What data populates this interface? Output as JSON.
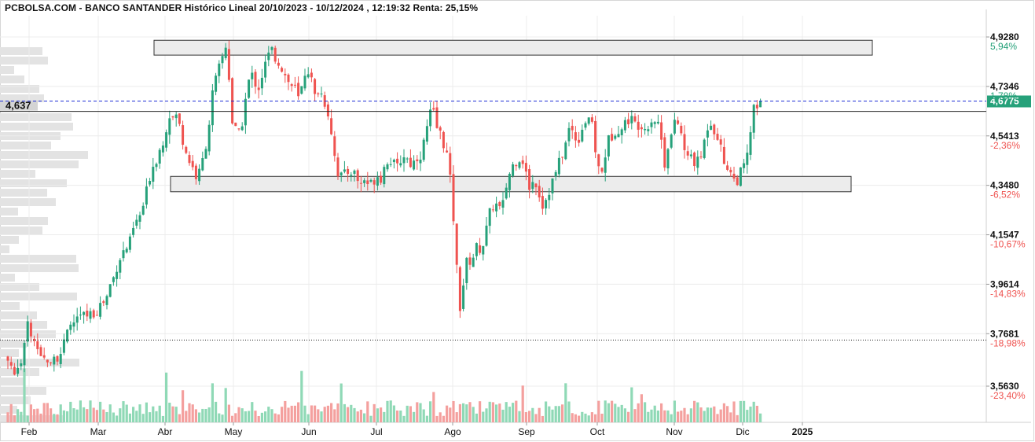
{
  "header": {
    "title": "PCBOLSA.COM - BANCO SANTANDER Histórico Lineal 20/10/2023 - 10/12/2024 , 12:19:32 Renta: 25,15%"
  },
  "colors": {
    "up": "#26a17a",
    "down": "#ef5350",
    "up_volume": "#8fd9b6",
    "down_volume": "#f4a09e",
    "profile": "#e3e3e3",
    "box_fill": "#ececec",
    "pos_pct": "#26a17a",
    "neg_pct": "#ef5350",
    "ref_line": "#1f2fd6",
    "last_price_tag": "#26a17a"
  },
  "chart_data": {
    "type": "candlestick",
    "title": "PCBOLSA.COM - BANCO SANTANDER Histórico Lineal 20/10/2023 - 10/12/2024 , 12:19:32 Renta: 25,15%",
    "y_axis": {
      "range": [
        3.5,
        5.03
      ],
      "ticks": [
        {
          "price": 4.928,
          "label": "4,9280",
          "pct": "5,94%"
        },
        {
          "price": 4.7346,
          "label": "4,7346",
          "pct": "1,78%"
        },
        {
          "price": 4.5413,
          "label": "4,5413",
          "pct": "-2,36%"
        },
        {
          "price": 4.348,
          "label": "4,3480",
          "pct": "-6,52%"
        },
        {
          "price": 4.1547,
          "label": "4,1547",
          "pct": "-10,67%"
        },
        {
          "price": 3.9614,
          "label": "3,9614",
          "pct": "-14,83%"
        },
        {
          "price": 3.7681,
          "label": "3,7681",
          "pct": "-18,98%"
        },
        {
          "price": 3.563,
          "label": "3,5630",
          "pct": "-23,40%"
        }
      ]
    },
    "x_axis": {
      "labels": [
        "Feb",
        "Mar",
        "Abr",
        "May",
        "Jun",
        "Jul",
        "Ago",
        "Sep",
        "Oct",
        "Nov",
        "Dic",
        "2025"
      ]
    },
    "reference_line": {
      "label": "4,637",
      "price": 4.637
    },
    "last_price": {
      "label": "4,6775",
      "price": 4.6775
    },
    "dotted_line_price": 3.768,
    "zones": [
      {
        "name": "upper",
        "low": 4.857,
        "high": 4.915
      },
      {
        "name": "lower",
        "low": 4.323,
        "high": 4.383
      }
    ],
    "path": [
      [
        0,
        3.725
      ],
      [
        5,
        3.7
      ],
      [
        10,
        3.67
      ],
      [
        15,
        3.64
      ],
      [
        20,
        3.62
      ],
      [
        25,
        3.63
      ],
      [
        30,
        3.7
      ],
      [
        35,
        3.8
      ],
      [
        40,
        3.76
      ],
      [
        45,
        3.7
      ],
      [
        50,
        3.67
      ],
      [
        55,
        3.66
      ],
      [
        60,
        3.68
      ],
      [
        65,
        3.67
      ],
      [
        70,
        3.69
      ],
      [
        75,
        3.68
      ],
      [
        80,
        3.71
      ],
      [
        85,
        3.76
      ],
      [
        90,
        3.8
      ],
      [
        95,
        3.82
      ],
      [
        100,
        3.83
      ],
      [
        110,
        3.84
      ],
      [
        120,
        3.85
      ],
      [
        125,
        3.87
      ],
      [
        130,
        3.89
      ],
      [
        135,
        3.9
      ],
      [
        140,
        3.96
      ],
      [
        145,
        3.99
      ],
      [
        150,
        4.05
      ],
      [
        155,
        4.08
      ],
      [
        160,
        4.1
      ],
      [
        165,
        4.12
      ],
      [
        170,
        4.18
      ],
      [
        175,
        4.21
      ],
      [
        180,
        4.24
      ],
      [
        185,
        4.3
      ],
      [
        190,
        4.38
      ],
      [
        195,
        4.43
      ],
      [
        200,
        4.46
      ],
      [
        205,
        4.5
      ],
      [
        210,
        4.55
      ],
      [
        215,
        4.63
      ],
      [
        220,
        4.61
      ],
      [
        225,
        4.62
      ],
      [
        230,
        4.56
      ],
      [
        235,
        4.5
      ],
      [
        240,
        4.45
      ],
      [
        245,
        4.42
      ],
      [
        250,
        4.38
      ],
      [
        255,
        4.4
      ],
      [
        260,
        4.48
      ],
      [
        265,
        4.56
      ],
      [
        270,
        4.7
      ],
      [
        275,
        4.76
      ],
      [
        280,
        4.82
      ],
      [
        285,
        4.87
      ],
      [
        288,
        4.9
      ],
      [
        290,
        4.84
      ],
      [
        295,
        4.6
      ],
      [
        300,
        4.56
      ],
      [
        305,
        4.54
      ],
      [
        310,
        4.63
      ],
      [
        315,
        4.74
      ],
      [
        320,
        4.78
      ],
      [
        325,
        4.75
      ],
      [
        330,
        4.73
      ],
      [
        335,
        4.8
      ],
      [
        340,
        4.84
      ],
      [
        345,
        4.88
      ],
      [
        350,
        4.85
      ],
      [
        355,
        4.83
      ],
      [
        360,
        4.8
      ],
      [
        365,
        4.76
      ],
      [
        370,
        4.74
      ],
      [
        375,
        4.73
      ],
      [
        380,
        4.68
      ],
      [
        385,
        4.74
      ],
      [
        390,
        4.82
      ],
      [
        395,
        4.78
      ],
      [
        400,
        4.69
      ],
      [
        405,
        4.72
      ],
      [
        410,
        4.7
      ],
      [
        415,
        4.66
      ],
      [
        420,
        4.6
      ],
      [
        425,
        4.48
      ],
      [
        430,
        4.4
      ],
      [
        435,
        4.38
      ],
      [
        440,
        4.39
      ],
      [
        445,
        4.41
      ],
      [
        450,
        4.4
      ],
      [
        455,
        4.37
      ],
      [
        460,
        4.35
      ],
      [
        465,
        4.38
      ],
      [
        470,
        4.34
      ],
      [
        475,
        4.37
      ],
      [
        480,
        4.39
      ],
      [
        485,
        4.38
      ],
      [
        490,
        4.43
      ],
      [
        495,
        4.46
      ],
      [
        500,
        4.43
      ],
      [
        505,
        4.41
      ],
      [
        510,
        4.45
      ],
      [
        515,
        4.47
      ],
      [
        520,
        4.44
      ],
      [
        525,
        4.43
      ],
      [
        530,
        4.46
      ],
      [
        535,
        4.47
      ],
      [
        540,
        4.52
      ],
      [
        545,
        4.6
      ],
      [
        550,
        4.65
      ],
      [
        555,
        4.58
      ],
      [
        560,
        4.55
      ],
      [
        565,
        4.51
      ],
      [
        570,
        4.45
      ],
      [
        575,
        4.3
      ],
      [
        578,
        4.18
      ],
      [
        582,
        3.98
      ],
      [
        585,
        3.87
      ],
      [
        588,
        3.92
      ],
      [
        592,
        4.03
      ],
      [
        596,
        4.06
      ],
      [
        600,
        4.05
      ],
      [
        604,
        4.09
      ],
      [
        608,
        4.11
      ],
      [
        612,
        4.1
      ],
      [
        616,
        4.13
      ],
      [
        620,
        4.19
      ],
      [
        625,
        4.26
      ],
      [
        630,
        4.28
      ],
      [
        635,
        4.25
      ],
      [
        640,
        4.27
      ],
      [
        645,
        4.36
      ],
      [
        650,
        4.41
      ],
      [
        655,
        4.44
      ],
      [
        660,
        4.46
      ],
      [
        665,
        4.45
      ],
      [
        670,
        4.38
      ],
      [
        675,
        4.33
      ],
      [
        680,
        4.38
      ],
      [
        685,
        4.33
      ],
      [
        690,
        4.27
      ],
      [
        695,
        4.3
      ],
      [
        700,
        4.34
      ],
      [
        705,
        4.38
      ],
      [
        710,
        4.42
      ],
      [
        715,
        4.47
      ],
      [
        720,
        4.51
      ],
      [
        725,
        4.58
      ],
      [
        730,
        4.55
      ],
      [
        735,
        4.52
      ],
      [
        740,
        4.57
      ],
      [
        745,
        4.6
      ],
      [
        750,
        4.62
      ],
      [
        755,
        4.55
      ],
      [
        760,
        4.43
      ],
      [
        765,
        4.38
      ],
      [
        770,
        4.47
      ],
      [
        775,
        4.53
      ],
      [
        780,
        4.55
      ],
      [
        785,
        4.58
      ],
      [
        790,
        4.56
      ],
      [
        795,
        4.59
      ],
      [
        800,
        4.61
      ],
      [
        805,
        4.6
      ],
      [
        810,
        4.58
      ],
      [
        815,
        4.6
      ],
      [
        820,
        4.57
      ],
      [
        825,
        4.59
      ],
      [
        830,
        4.61
      ],
      [
        835,
        4.6
      ],
      [
        840,
        4.58
      ],
      [
        845,
        4.42
      ],
      [
        850,
        4.51
      ],
      [
        855,
        4.55
      ],
      [
        860,
        4.6
      ],
      [
        865,
        4.58
      ],
      [
        870,
        4.49
      ],
      [
        875,
        4.45
      ],
      [
        880,
        4.47
      ],
      [
        885,
        4.43
      ],
      [
        890,
        4.44
      ],
      [
        895,
        4.5
      ],
      [
        900,
        4.58
      ],
      [
        905,
        4.6
      ],
      [
        910,
        4.56
      ],
      [
        915,
        4.53
      ],
      [
        920,
        4.44
      ],
      [
        925,
        4.43
      ],
      [
        930,
        4.4
      ],
      [
        935,
        4.36
      ],
      [
        940,
        4.38
      ],
      [
        945,
        4.41
      ],
      [
        950,
        4.44
      ],
      [
        955,
        4.56
      ],
      [
        960,
        4.66
      ],
      [
        965,
        4.64
      ],
      [
        970,
        4.6775
      ]
    ]
  }
}
